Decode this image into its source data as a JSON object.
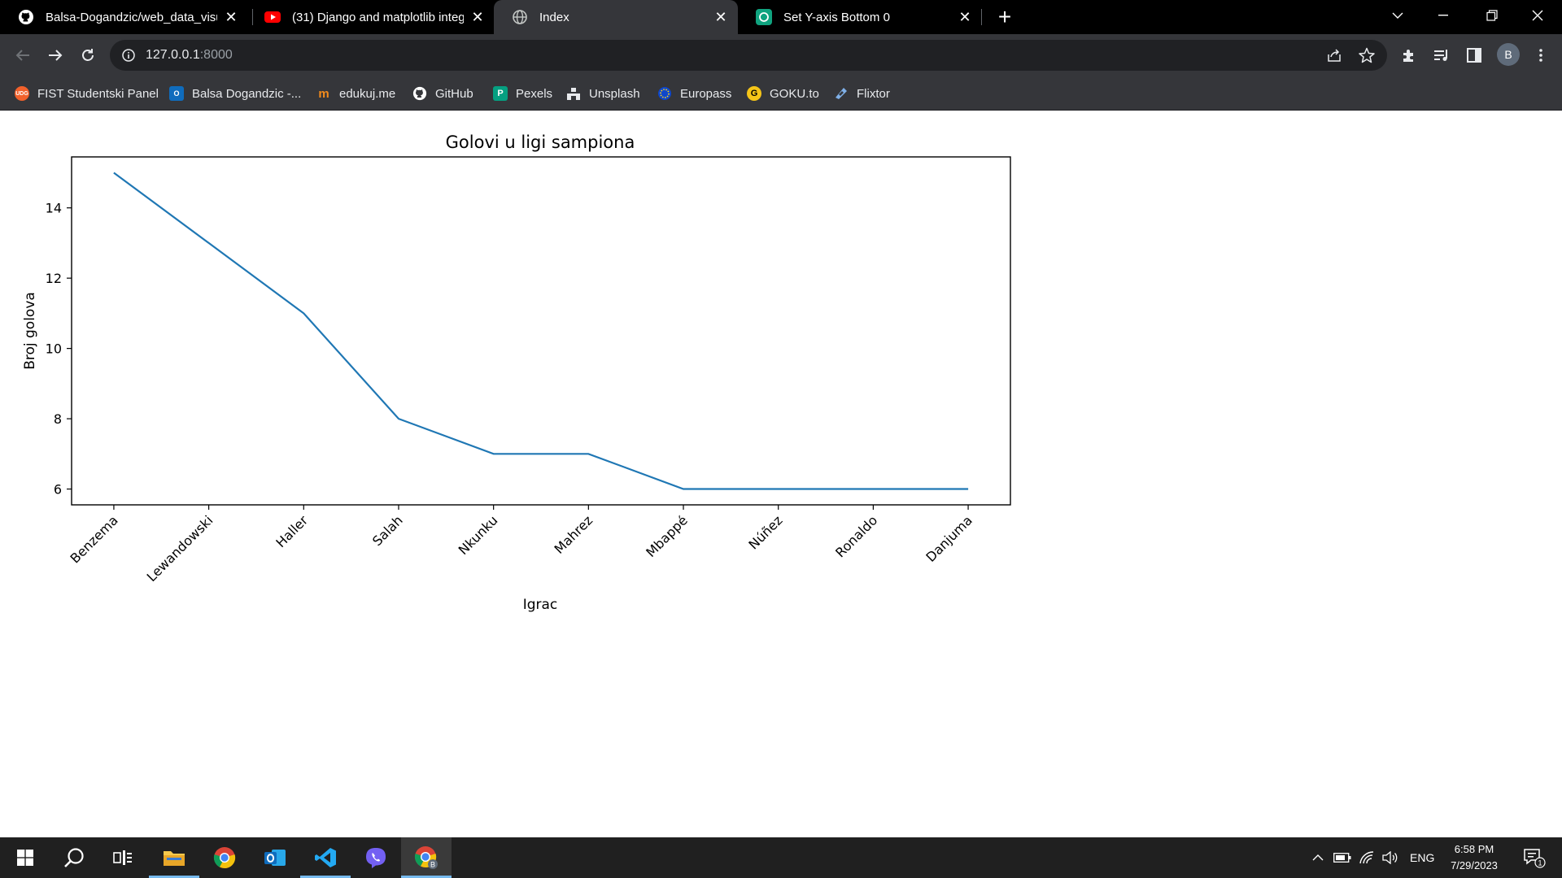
{
  "browser": {
    "tabs": [
      {
        "title": "Balsa-Dogandzic/web_data_visua",
        "icon": "github-icon"
      },
      {
        "title": "(31) Django and matplotlib integ",
        "icon": "youtube-icon"
      },
      {
        "title": "Index",
        "icon": "globe-icon"
      },
      {
        "title": "Set Y-axis Bottom 0",
        "icon": "chatgpt-icon"
      }
    ],
    "active_tab_index": 2,
    "url_host": "127.0.0.1",
    "url_port": ":8000",
    "profile_initial": "B",
    "bookmarks": [
      {
        "label": "FIST Studentski Panel",
        "icon": "udg-icon"
      },
      {
        "label": "Balsa Dogandzic -...",
        "icon": "outlook-icon"
      },
      {
        "label": "edukuj.me",
        "icon": "edukuj-icon"
      },
      {
        "label": "GitHub",
        "icon": "github-icon"
      },
      {
        "label": "Pexels",
        "icon": "pexels-icon"
      },
      {
        "label": "Unsplash",
        "icon": "unsplash-icon"
      },
      {
        "label": "Europass",
        "icon": "europass-icon"
      },
      {
        "label": "GOKU.to",
        "icon": "goku-icon"
      },
      {
        "label": "Flixtor",
        "icon": "flixtor-icon"
      }
    ]
  },
  "chart_data": {
    "type": "line",
    "title": "Golovi u ligi sampiona",
    "xlabel": "Igrac",
    "ylabel": "Broj golova",
    "categories": [
      "Benzema",
      "Lewandowski",
      "Haller",
      "Salah",
      "Nkunku",
      "Mahrez",
      "Mbappé",
      "Núñez",
      "Ronaldo",
      "Danjuma"
    ],
    "values": [
      15,
      13,
      11,
      8,
      7,
      7,
      6,
      6,
      6,
      6
    ],
    "ylim": [
      5.55,
      15.45
    ],
    "yticks": [
      6,
      8,
      10,
      12,
      14
    ],
    "line_color": "#1f77b4",
    "grid": false,
    "legend": "none"
  },
  "taskbar": {
    "time": "6:58 PM",
    "date": "7/29/2023",
    "language": "ENG",
    "notification_count": "1",
    "apps": [
      "start-icon",
      "search-icon",
      "task-view-icon",
      "file-explorer-icon",
      "chrome-icon",
      "outlook-icon",
      "vscode-icon",
      "viber-icon",
      "chrome-profile-icon"
    ]
  }
}
